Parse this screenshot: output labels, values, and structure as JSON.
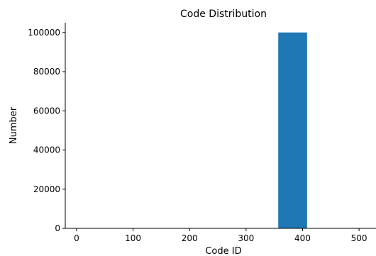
{
  "chart_data": {
    "type": "bar",
    "title": "Code Distribution",
    "xlabel": "Code ID",
    "ylabel": "Number",
    "xlim": [
      -20,
      530
    ],
    "ylim": [
      0,
      105000
    ],
    "x_ticks": [
      "0",
      "100",
      "200",
      "300",
      "400",
      "500"
    ],
    "y_ticks": [
      "0",
      "20000",
      "40000",
      "60000",
      "80000",
      "100000"
    ],
    "grid": false,
    "bars": [
      {
        "x_start": 0,
        "x_end": 51,
        "value": 0
      },
      {
        "x_start": 51,
        "x_end": 102,
        "value": 0
      },
      {
        "x_start": 102,
        "x_end": 153,
        "value": 0
      },
      {
        "x_start": 153,
        "x_end": 204,
        "value": 0
      },
      {
        "x_start": 204,
        "x_end": 255,
        "value": 0
      },
      {
        "x_start": 255,
        "x_end": 306,
        "value": 0
      },
      {
        "x_start": 306,
        "x_end": 357,
        "value": 0
      },
      {
        "x_start": 357,
        "x_end": 408,
        "value": 100000
      },
      {
        "x_start": 408,
        "x_end": 459,
        "value": 0
      },
      {
        "x_start": 459,
        "x_end": 510,
        "value": 0
      }
    ],
    "bar_color": "#1f77b4"
  }
}
